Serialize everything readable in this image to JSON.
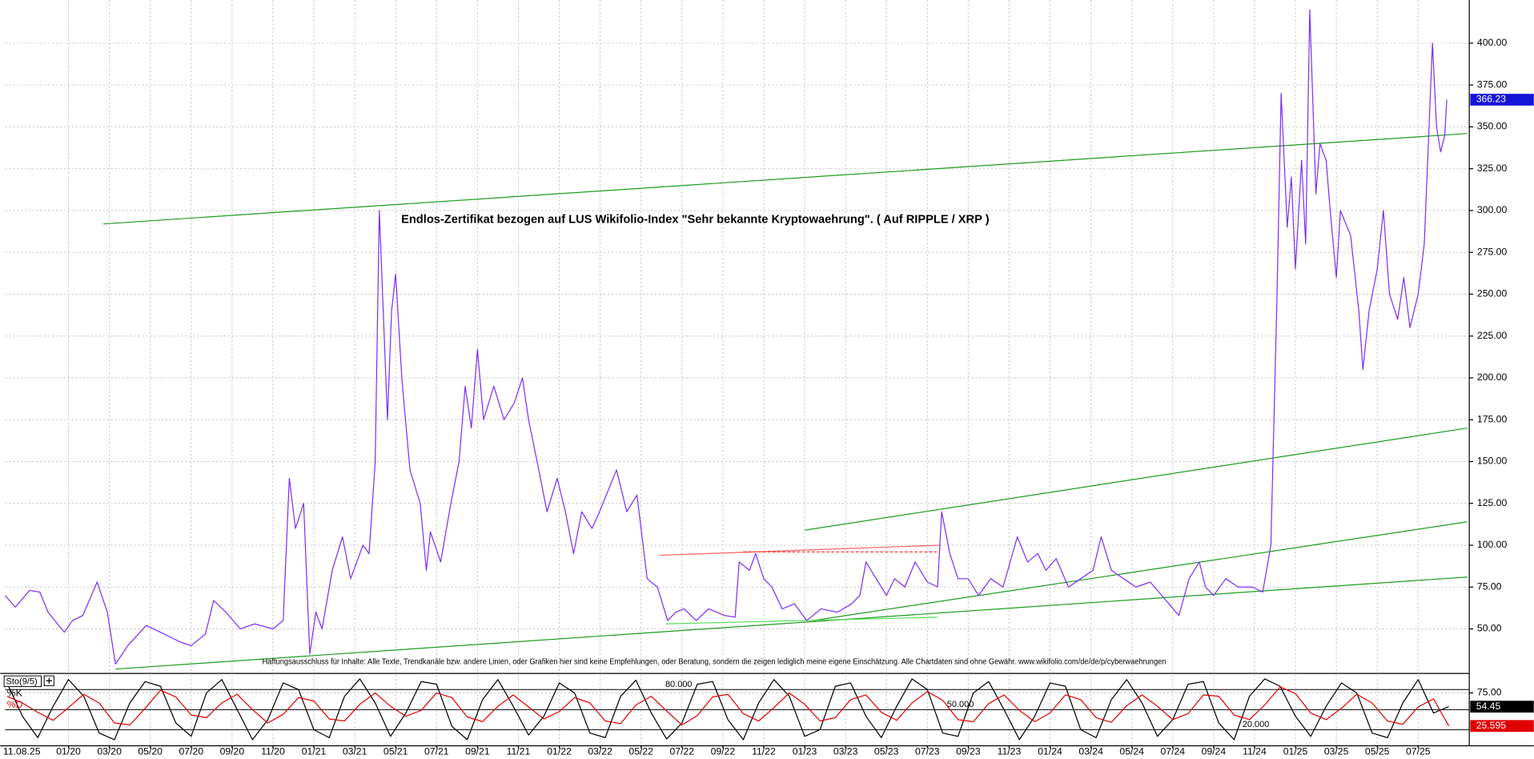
{
  "chart_data": [
    {
      "type": "line",
      "title": "Endlos-Zertifikat bezogen auf LUS Wikifolio-Index \"Sehr bekannte Kryptowaehrung\". ( Auf RIPPLE / XRP )",
      "disclaimer": "Haftungsausschluss für Inhalte: Alle Texte, Trendkanäle bzw. andere Linien, oder Grafiken hier sind keine Empfehlungen, oder Beratung, sondern die zeigen lediglich meine eigene Einschätzung. Alle Chartdaten sind ohne Gewähr. www.wikifolio.com/de/de/p/cyberwaehrungen",
      "color": "#7b2ff7",
      "grid": true,
      "x": [
        -3.1,
        -2.6,
        -1.9,
        -1.4,
        -1.0,
        -0.2,
        0.2,
        0.7,
        1.4,
        1.9,
        2.3,
        2.9,
        3.8,
        4.5,
        5.5,
        6.0,
        6.7,
        7.1,
        7.7,
        8.4,
        9.1,
        10.0,
        10.5,
        10.8,
        11.1,
        11.5,
        11.8,
        12.1,
        12.4,
        12.9,
        13.4,
        13.8,
        14.4,
        14.7,
        15.0,
        15.2,
        15.6,
        15.8,
        16.0,
        16.3,
        16.7,
        17.2,
        17.5,
        17.7,
        18.2,
        18.7,
        19.1,
        19.4,
        19.7,
        20.0,
        20.3,
        20.8,
        21.3,
        21.8,
        22.2,
        22.5,
        23.0,
        23.4,
        23.9,
        24.3,
        24.7,
        25.1,
        25.6,
        25.9,
        26.3,
        26.8,
        27.3,
        27.8,
        28.0,
        28.3,
        28.8,
        29.3,
        29.7,
        30.1,
        30.7,
        31.3,
        32.1,
        32.6,
        32.8,
        33.3,
        33.6,
        34.0,
        34.4,
        34.9,
        35.5,
        36.1,
        36.8,
        37.6,
        38.3,
        38.7,
        39.0,
        39.5,
        40.0,
        40.4,
        40.9,
        41.4,
        42.0,
        42.5,
        42.7,
        43.1,
        43.5,
        44.0,
        44.5,
        45.1,
        45.7,
        46.4,
        46.9,
        47.4,
        47.8,
        48.3,
        48.9,
        49.5,
        50.1,
        50.5,
        51.0,
        51.6,
        52.2,
        52.9,
        53.6,
        54.3,
        54.8,
        55.3,
        55.6,
        56.0,
        56.6,
        57.2,
        57.9,
        58.4,
        58.8,
        58.9,
        59.1,
        59.3,
        59.6,
        59.8,
        60.0,
        60.3,
        60.5,
        60.7,
        61.0,
        61.2,
        61.5,
        61.7,
        62.0,
        62.2,
        62.7,
        63.1,
        63.3,
        63.6,
        64.0,
        64.3,
        64.6,
        65.0,
        65.3,
        65.6,
        66.0,
        66.3,
        66.5,
        66.7,
        66.9,
        67.1,
        67.3,
        67.4
      ],
      "values": [
        70,
        63,
        73,
        72,
        60,
        48,
        55,
        58,
        78,
        60,
        29,
        40,
        52,
        48,
        42,
        40,
        47,
        67,
        60,
        50,
        53,
        50,
        55,
        140,
        110,
        125,
        35,
        60,
        50,
        85,
        105,
        80,
        100,
        95,
        150,
        300,
        175,
        240,
        262,
        200,
        145,
        125,
        85,
        108,
        90,
        125,
        150,
        195,
        170,
        217,
        175,
        195,
        175,
        185,
        200,
        175,
        145,
        120,
        140,
        120,
        95,
        120,
        110,
        118,
        130,
        145,
        120,
        130,
        110,
        80,
        75,
        55,
        60,
        62,
        55,
        62,
        58,
        57,
        90,
        85,
        95,
        80,
        75,
        62,
        65,
        55,
        62,
        60,
        65,
        70,
        90,
        80,
        70,
        80,
        75,
        90,
        78,
        75,
        120,
        95,
        80,
        80,
        70,
        80,
        75,
        105,
        90,
        95,
        85,
        92,
        75,
        80,
        85,
        105,
        85,
        80,
        75,
        78,
        68,
        58,
        80,
        90,
        75,
        70,
        80,
        75,
        75,
        72,
        100,
        150,
        250,
        370,
        290,
        320,
        265,
        330,
        280,
        420,
        310,
        340,
        330,
        300,
        260,
        300,
        285,
        240,
        205,
        240,
        265,
        300,
        250,
        235,
        260,
        230,
        250,
        280,
        340,
        400,
        350,
        335,
        345,
        366.23
      ],
      "xlim": [
        -3.1,
        68.5
      ],
      "ylim": [
        23.7,
        425.8
      ],
      "yticks": [
        {
          "value": 50,
          "label": "50.00"
        },
        {
          "value": 75,
          "label": "75.00"
        },
        {
          "value": 100,
          "label": "100.00"
        },
        {
          "value": 125,
          "label": "125.00"
        },
        {
          "value": 150,
          "label": "150.00"
        },
        {
          "value": 175,
          "label": "175.00"
        },
        {
          "value": 200,
          "label": "200.00"
        },
        {
          "value": 225,
          "label": "225.00"
        },
        {
          "value": 250,
          "label": "250.00"
        },
        {
          "value": 275,
          "label": "275.00"
        },
        {
          "value": 300,
          "label": "300.00"
        },
        {
          "value": 325,
          "label": "325.00"
        },
        {
          "value": 350,
          "label": "350.00"
        },
        {
          "value": 375,
          "label": "375.00"
        },
        {
          "value": 400,
          "label": "400.00"
        }
      ],
      "trendlines": [
        {
          "color": "#1f9a1f",
          "x": [
            1.7,
            68.4
          ],
          "values": [
            292,
            346
          ]
        },
        {
          "color": "#1f9a1f",
          "x": [
            36.0,
            68.4
          ],
          "values": [
            109,
            170
          ]
        },
        {
          "color": "#1f9a1f",
          "x": [
            2.3,
            68.4
          ],
          "values": [
            26,
            81
          ]
        },
        {
          "color": "#1f9a1f",
          "x": [
            36.4,
            68.4
          ],
          "values": [
            55,
            114
          ]
        },
        {
          "color": "#ff6060",
          "x": [
            28.9,
            42.6
          ],
          "values": [
            94,
            100
          ]
        },
        {
          "color": "#ff3030",
          "x": [
            33.0,
            42.6
          ],
          "values": [
            96,
            96
          ],
          "dashed": true
        },
        {
          "color": "#55dd55",
          "x": [
            29.2,
            42.5
          ],
          "values": [
            53,
            57
          ]
        }
      ]
    },
    {
      "type": "line",
      "title": "Sto(9/5)",
      "date": "11.08.25",
      "grid": true,
      "x": [
        -3,
        -2.25,
        -1.5,
        -0.75,
        0,
        0.75,
        1.5,
        2.25,
        3,
        3.75,
        4.5,
        5.25,
        6,
        6.75,
        7.5,
        8.25,
        9,
        9.75,
        10.5,
        11.25,
        12,
        12.75,
        13.5,
        14.25,
        15,
        15.75,
        16.5,
        17.25,
        18,
        18.75,
        19.5,
        20.25,
        21,
        21.75,
        22.5,
        23.25,
        24,
        24.75,
        25.5,
        26.25,
        27,
        27.75,
        28.5,
        29.25,
        30,
        30.75,
        31.5,
        32.25,
        33,
        33.75,
        34.5,
        35.25,
        36,
        36.75,
        37.5,
        38.25,
        39,
        39.75,
        40.5,
        41.25,
        42,
        42.75,
        43.5,
        44.25,
        45,
        45.75,
        46.5,
        47.25,
        48,
        48.75,
        49.5,
        50.25,
        51,
        51.75,
        52.5,
        53.25,
        54,
        54.75,
        55.5,
        56.25,
        57,
        57.75,
        58.5,
        59.25,
        60,
        60.75,
        61.5,
        62.25,
        63,
        63.75,
        64.5,
        65.25,
        66,
        66.75,
        67.5
      ],
      "series": [
        {
          "name": "%K",
          "color": "#000000",
          "values": [
            90,
            40,
            8,
            55,
            95,
            70,
            15,
            5,
            60,
            92,
            85,
            30,
            10,
            75,
            95,
            50,
            5,
            35,
            90,
            80,
            20,
            8,
            70,
            96,
            60,
            10,
            45,
            92,
            88,
            25,
            5,
            65,
            95,
            55,
            12,
            40,
            90,
            75,
            15,
            8,
            70,
            94,
            45,
            6,
            30,
            88,
            92,
            35,
            5,
            60,
            95,
            70,
            10,
            20,
            85,
            90,
            40,
            8,
            55,
            96,
            80,
            15,
            10,
            75,
            92,
            50,
            5,
            40,
            90,
            85,
            20,
            8,
            65,
            95,
            60,
            10,
            35,
            88,
            92,
            30,
            5,
            70,
            96,
            85,
            40,
            10,
            55,
            90,
            75,
            15,
            8,
            60,
            95,
            45,
            54.45
          ]
        },
        {
          "name": "%D",
          "color": "#e00000",
          "values": [
            70,
            60,
            46,
            34,
            53,
            73,
            60,
            30,
            27,
            52,
            79,
            69,
            42,
            38,
            60,
            73,
            50,
            30,
            43,
            68,
            63,
            36,
            33,
            58,
            75,
            55,
            40,
            49,
            75,
            68,
            39,
            32,
            55,
            72,
            54,
            36,
            47,
            68,
            60,
            33,
            29,
            57,
            70,
            48,
            27,
            41,
            69,
            73,
            44,
            33,
            53,
            75,
            58,
            33,
            38,
            65,
            72,
            46,
            34,
            60,
            77,
            64,
            35,
            32,
            59,
            72,
            49,
            32,
            45,
            72,
            65,
            38,
            31,
            56,
            72,
            55,
            35,
            44,
            72,
            70,
            42,
            35,
            57,
            84,
            74,
            45,
            35,
            52,
            73,
            60,
            33,
            28,
            54,
            66,
            25.595
          ]
        }
      ],
      "xlim": [
        -3.1,
        68.5
      ],
      "ylim": [
        -3.4,
        102
      ],
      "yticks": [
        {
          "value": 75,
          "label": "75.00"
        }
      ],
      "levels": [
        {
          "value": 80,
          "label": "80.000"
        },
        {
          "value": 50,
          "label": "50.000"
        },
        {
          "value": 20,
          "label": "20.000"
        }
      ],
      "xticks": [
        {
          "value": 0,
          "label": "01/20"
        },
        {
          "value": 2,
          "label": "03/20"
        },
        {
          "value": 4,
          "label": "05/20"
        },
        {
          "value": 6,
          "label": "07/20"
        },
        {
          "value": 8,
          "label": "09/20"
        },
        {
          "value": 10,
          "label": "11/20"
        },
        {
          "value": 12,
          "label": "01/21"
        },
        {
          "value": 14,
          "label": "03/21"
        },
        {
          "value": 16,
          "label": "05/21"
        },
        {
          "value": 18,
          "label": "07/21"
        },
        {
          "value": 20,
          "label": "09/21"
        },
        {
          "value": 22,
          "label": "11/21"
        },
        {
          "value": 24,
          "label": "01/22"
        },
        {
          "value": 26,
          "label": "03/22"
        },
        {
          "value": 28,
          "label": "05/22"
        },
        {
          "value": 30,
          "label": "07/22"
        },
        {
          "value": 32,
          "label": "09/22"
        },
        {
          "value": 34,
          "label": "11/22"
        },
        {
          "value": 36,
          "label": "01/23"
        },
        {
          "value": 38,
          "label": "03/23"
        },
        {
          "value": 40,
          "label": "05/23"
        },
        {
          "value": 42,
          "label": "07/23"
        },
        {
          "value": 44,
          "label": "09/23"
        },
        {
          "value": 46,
          "label": "11/23"
        },
        {
          "value": 48,
          "label": "01/24"
        },
        {
          "value": 50,
          "label": "03/24"
        },
        {
          "value": 52,
          "label": "05/24"
        },
        {
          "value": 54,
          "label": "07/24"
        },
        {
          "value": 56,
          "label": "09/24"
        },
        {
          "value": 58,
          "label": "11/24"
        },
        {
          "value": 60,
          "label": "01/25"
        },
        {
          "value": 62,
          "label": "03/25"
        },
        {
          "value": 64,
          "label": "05/25"
        },
        {
          "value": 66,
          "label": "07/25"
        }
      ]
    }
  ]
}
